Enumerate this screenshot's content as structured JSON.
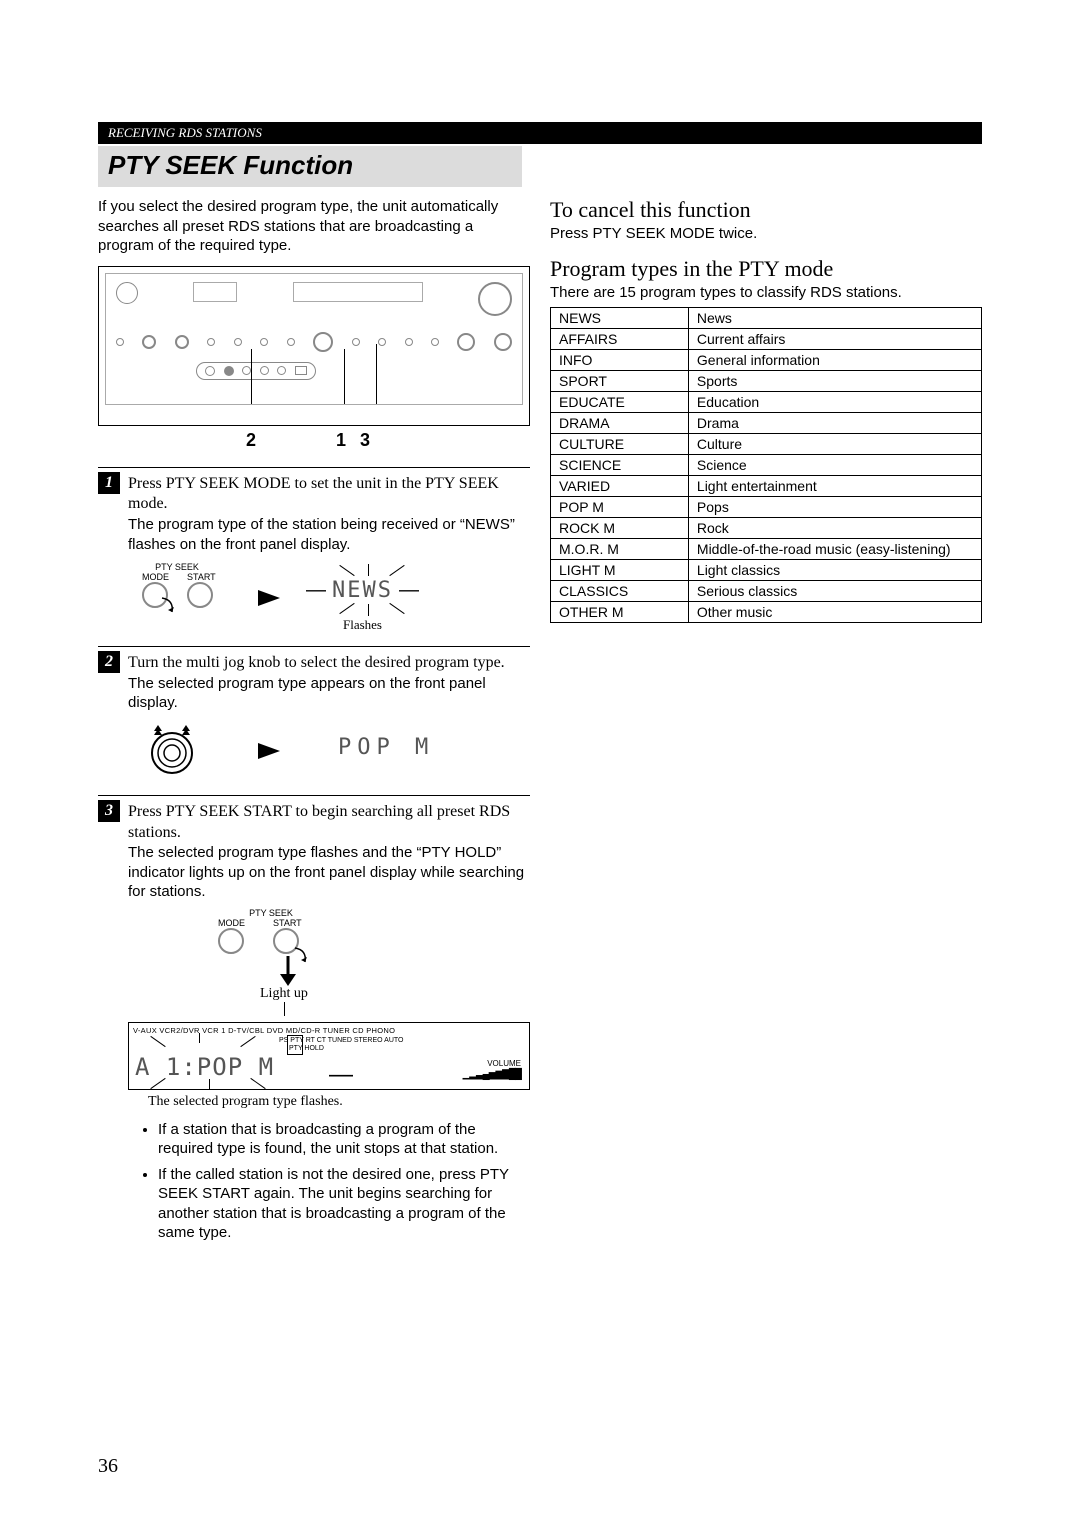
{
  "header": {
    "banner": "RECEIVING RDS STATIONS"
  },
  "title": "PTY SEEK Function",
  "intro": "If you select the desired program type, the unit automatically searches all preset RDS stations that are broadcasting a program of the required type.",
  "callouts": {
    "a": "2",
    "b": "1",
    "c": "3"
  },
  "steps": {
    "s1": {
      "num": "1",
      "lead": "Press PTY SEEK MODE to set the unit in the PTY SEEK mode.",
      "body": "The program type of the station being received or “NEWS” flashes on the front panel display.",
      "disp": "NEWS",
      "flashes": "Flashes",
      "knob_top": "PTY SEEK",
      "knob_l": "MODE",
      "knob_r": "START"
    },
    "s2": {
      "num": "2",
      "lead": "Turn the multi jog knob to select the desired program type.",
      "body": "The selected program type appears on the front panel display.",
      "disp": "POP M"
    },
    "s3": {
      "num": "3",
      "lead": "Press PTY SEEK START to begin searching all preset RDS stations.",
      "body": "The selected program type flashes and the “PTY HOLD” indicator lights up on the front panel display while searching for stations.",
      "knob_top": "PTY SEEK",
      "knob_l": "MODE",
      "knob_r": "START",
      "lightup": "Light up",
      "disp": "A 1:POP M",
      "indline": "V-AUX  VCR2/DVR  VCR 1  D-TV/CBL   DVD   MD/CD-R  TUNER    CD   PHONO",
      "indline2": "PS  PTY  RT  CT  TUNED STEREO AUTO",
      "indline3": "PTY HOLD",
      "vol": "VOLUME",
      "caption": "The selected program type flashes.",
      "bullet1": "If a station that is broadcasting a program of the required type is found, the unit stops at that station.",
      "bullet2": "If the called station is not the desired one, press PTY SEEK START again. The unit begins searching for another station that is broadcasting a program of the same type."
    }
  },
  "right": {
    "cancel_h": "To cancel this function",
    "cancel_p": "Press PTY SEEK MODE twice.",
    "types_h": "Program types in the PTY mode",
    "types_p": "There are 15 program types to classify RDS stations.",
    "rows": [
      [
        "NEWS",
        "News"
      ],
      [
        "AFFAIRS",
        "Current affairs"
      ],
      [
        "INFO",
        "General information"
      ],
      [
        "SPORT",
        "Sports"
      ],
      [
        "EDUCATE",
        "Education"
      ],
      [
        "DRAMA",
        "Drama"
      ],
      [
        "CULTURE",
        "Culture"
      ],
      [
        "SCIENCE",
        "Science"
      ],
      [
        "VARIED",
        "Light entertainment"
      ],
      [
        "POP M",
        "Pops"
      ],
      [
        "ROCK M",
        "Rock"
      ],
      [
        "M.O.R. M",
        "Middle-of-the-road music (easy-listening)"
      ],
      [
        "LIGHT M",
        "Light classics"
      ],
      [
        "CLASSICS",
        "Serious classics"
      ],
      [
        "OTHER M",
        "Other music"
      ]
    ]
  },
  "page": "36"
}
